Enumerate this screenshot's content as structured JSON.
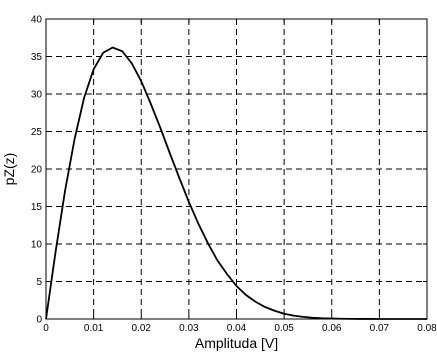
{
  "chart_data": {
    "type": "line",
    "title": "",
    "xlabel": "Amplituda [V]",
    "ylabel": "pZ(z)",
    "xlim": [
      0,
      0.08
    ],
    "ylim": [
      0,
      40
    ],
    "grid": true,
    "x_ticks": [
      "0",
      "0.01",
      "0.02",
      "0.03",
      "0.04",
      "0.05",
      "0.06",
      "0.07",
      "0.08"
    ],
    "y_ticks": [
      "0",
      "5",
      "10",
      "15",
      "20",
      "25",
      "30",
      "35",
      "40"
    ],
    "series": [
      {
        "color": "#000000",
        "x": [
          0,
          0.002,
          0.004,
          0.006,
          0.008,
          0.01,
          0.012,
          0.014,
          0.016,
          0.018,
          0.02,
          0.022,
          0.024,
          0.026,
          0.028,
          0.03,
          0.032,
          0.034,
          0.036,
          0.038,
          0.04,
          0.042,
          0.044,
          0.046,
          0.048,
          0.05,
          0.052,
          0.054,
          0.056,
          0.058,
          0.06,
          0.062,
          0.064,
          0.066,
          0.068,
          0.07,
          0.072,
          0.074,
          0.076,
          0.078,
          0.08
        ],
        "y": [
          0,
          8.9,
          17.1,
          24.0,
          29.5,
          33.3,
          35.5,
          36.2,
          35.7,
          34.1,
          31.7,
          28.7,
          25.5,
          22.1,
          18.8,
          15.6,
          12.7,
          10.1,
          7.8,
          6.0,
          4.4,
          3.2,
          2.3,
          1.6,
          1.1,
          0.7,
          0.45,
          0.28,
          0.17,
          0.1,
          0.06,
          0.035,
          0.02,
          0.011,
          0.006,
          0.003,
          0.002,
          0.001,
          0.0005,
          0.0002,
          0.0001
        ]
      }
    ]
  }
}
